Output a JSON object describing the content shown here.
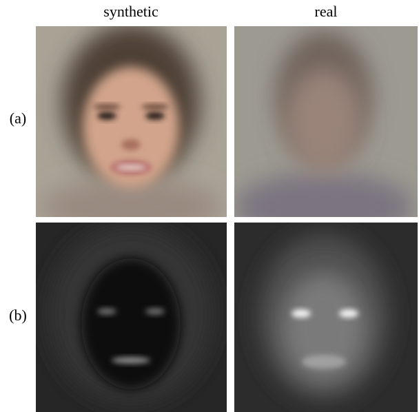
{
  "columns": [
    "synthetic",
    "real"
  ],
  "rows": [
    "(a)",
    "(b)"
  ]
}
